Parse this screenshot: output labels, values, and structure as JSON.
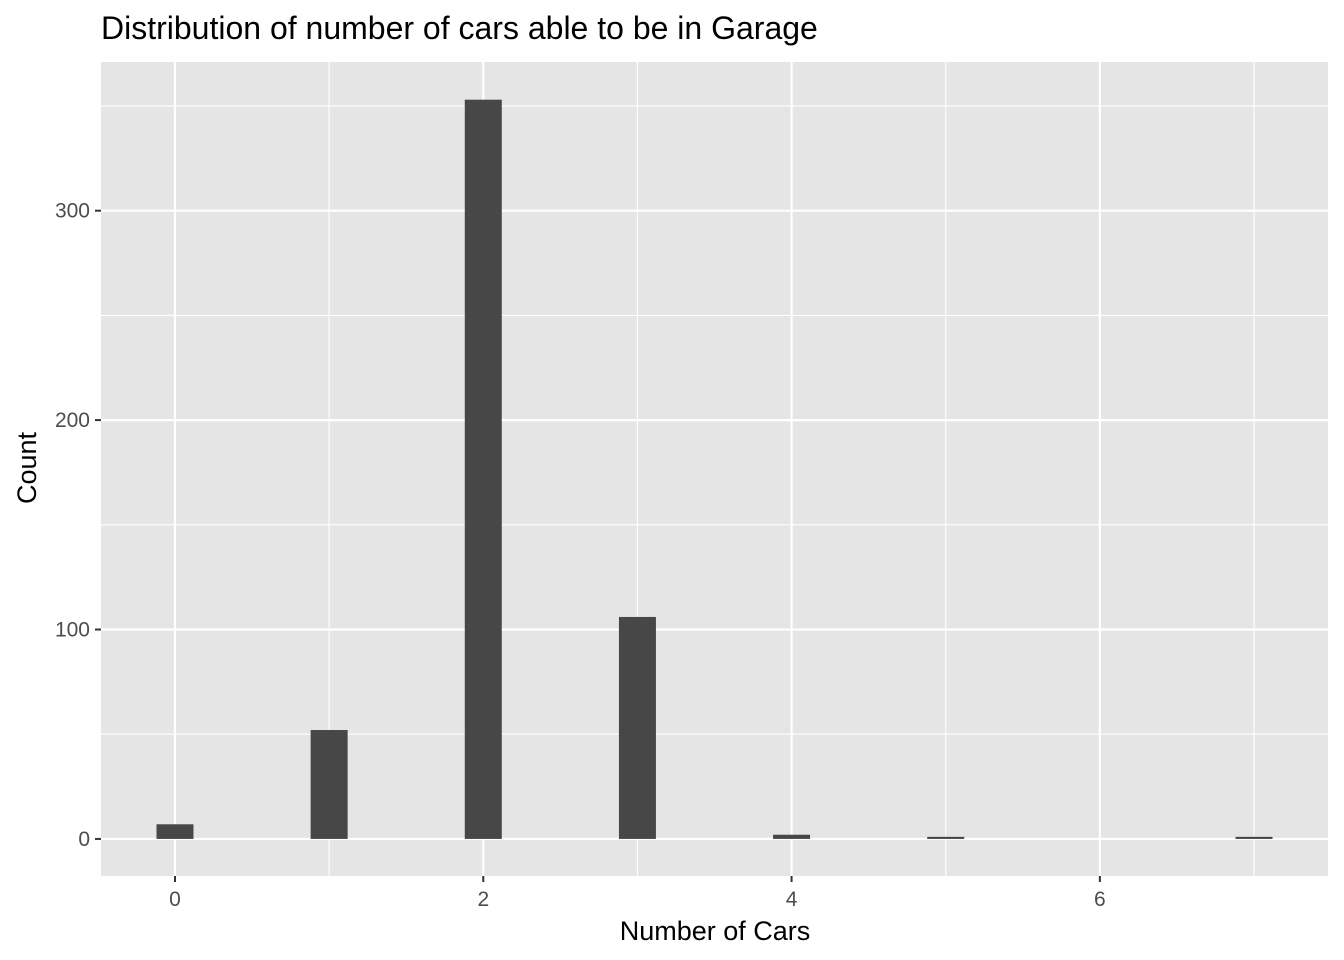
{
  "chart_data": {
    "type": "bar",
    "title": "Distribution of number of cars able to be in Garage",
    "xlabel": "Number of Cars",
    "ylabel": "Count",
    "x": [
      0,
      1,
      2,
      3,
      4,
      5,
      7
    ],
    "values": [
      7,
      52,
      353,
      106,
      2,
      1,
      1
    ],
    "xlim": [
      -0.48,
      7.48
    ],
    "ylim": [
      -17.7,
      371
    ],
    "x_ticks": [
      0,
      2,
      4,
      6
    ],
    "x_tick_labels": [
      "0",
      "2",
      "4",
      "6"
    ],
    "y_ticks": [
      0,
      100,
      200,
      300
    ],
    "y_tick_labels": [
      "0",
      "100",
      "200",
      "300"
    ],
    "grid": true,
    "legend": "none",
    "colors": {
      "panel_background": "#e5e5e5",
      "grid_line": "#ffffff",
      "bar_fill": "#474747",
      "tick_label": "#4d4d4d",
      "tick_mark": "#333333"
    }
  }
}
